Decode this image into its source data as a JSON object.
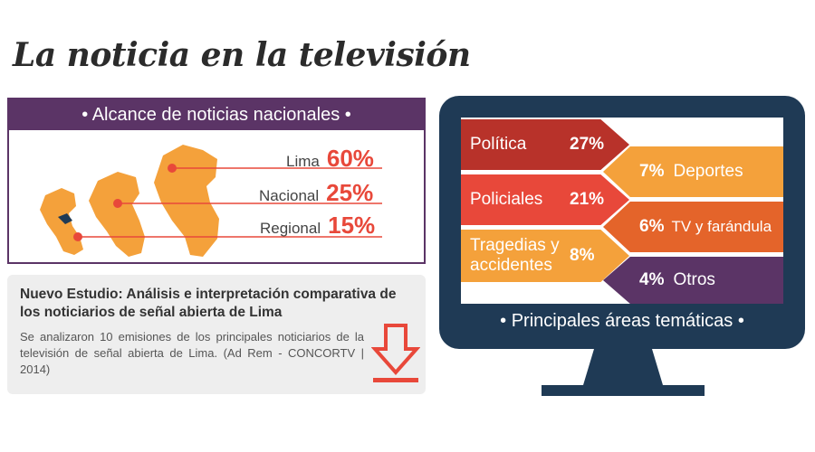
{
  "title": "La noticia en la televisión",
  "reach": {
    "header": "• Alcance de noticias nacionales •",
    "rows": [
      {
        "label": "Lima",
        "value": "60%"
      },
      {
        "label": "Nacional",
        "value": "25%"
      },
      {
        "label": "Regional",
        "value": "15%"
      }
    ]
  },
  "study": {
    "title": "Nuevo Estudio: Análisis e interpretación comparativa de los noticiarios de señal abierta de Lima",
    "description": "Se analizaron 10 emisiones de los principales noticiarios de la televisión de señal abierta de Lima. (Ad Rem - CONCORTV | 2014)"
  },
  "tv": {
    "caption": "• Principales áreas temáticas •",
    "left": [
      {
        "label": "Política",
        "pct": "27%"
      },
      {
        "label": "Policiales",
        "pct": "21%"
      },
      {
        "label": "Tragedias y accidentes",
        "pct": "8%"
      }
    ],
    "right": [
      {
        "pct": "7%",
        "label": "Deportes"
      },
      {
        "pct": "6%",
        "label": "TV y farándula"
      },
      {
        "pct": "4%",
        "label": "Otros"
      }
    ]
  },
  "colors": {
    "purple": "#5b3466",
    "red": "#e8483a",
    "dark_red": "#b8322a",
    "orange": "#f4a13b",
    "dark_orange": "#e4642a",
    "navy": "#1f3a55"
  }
}
